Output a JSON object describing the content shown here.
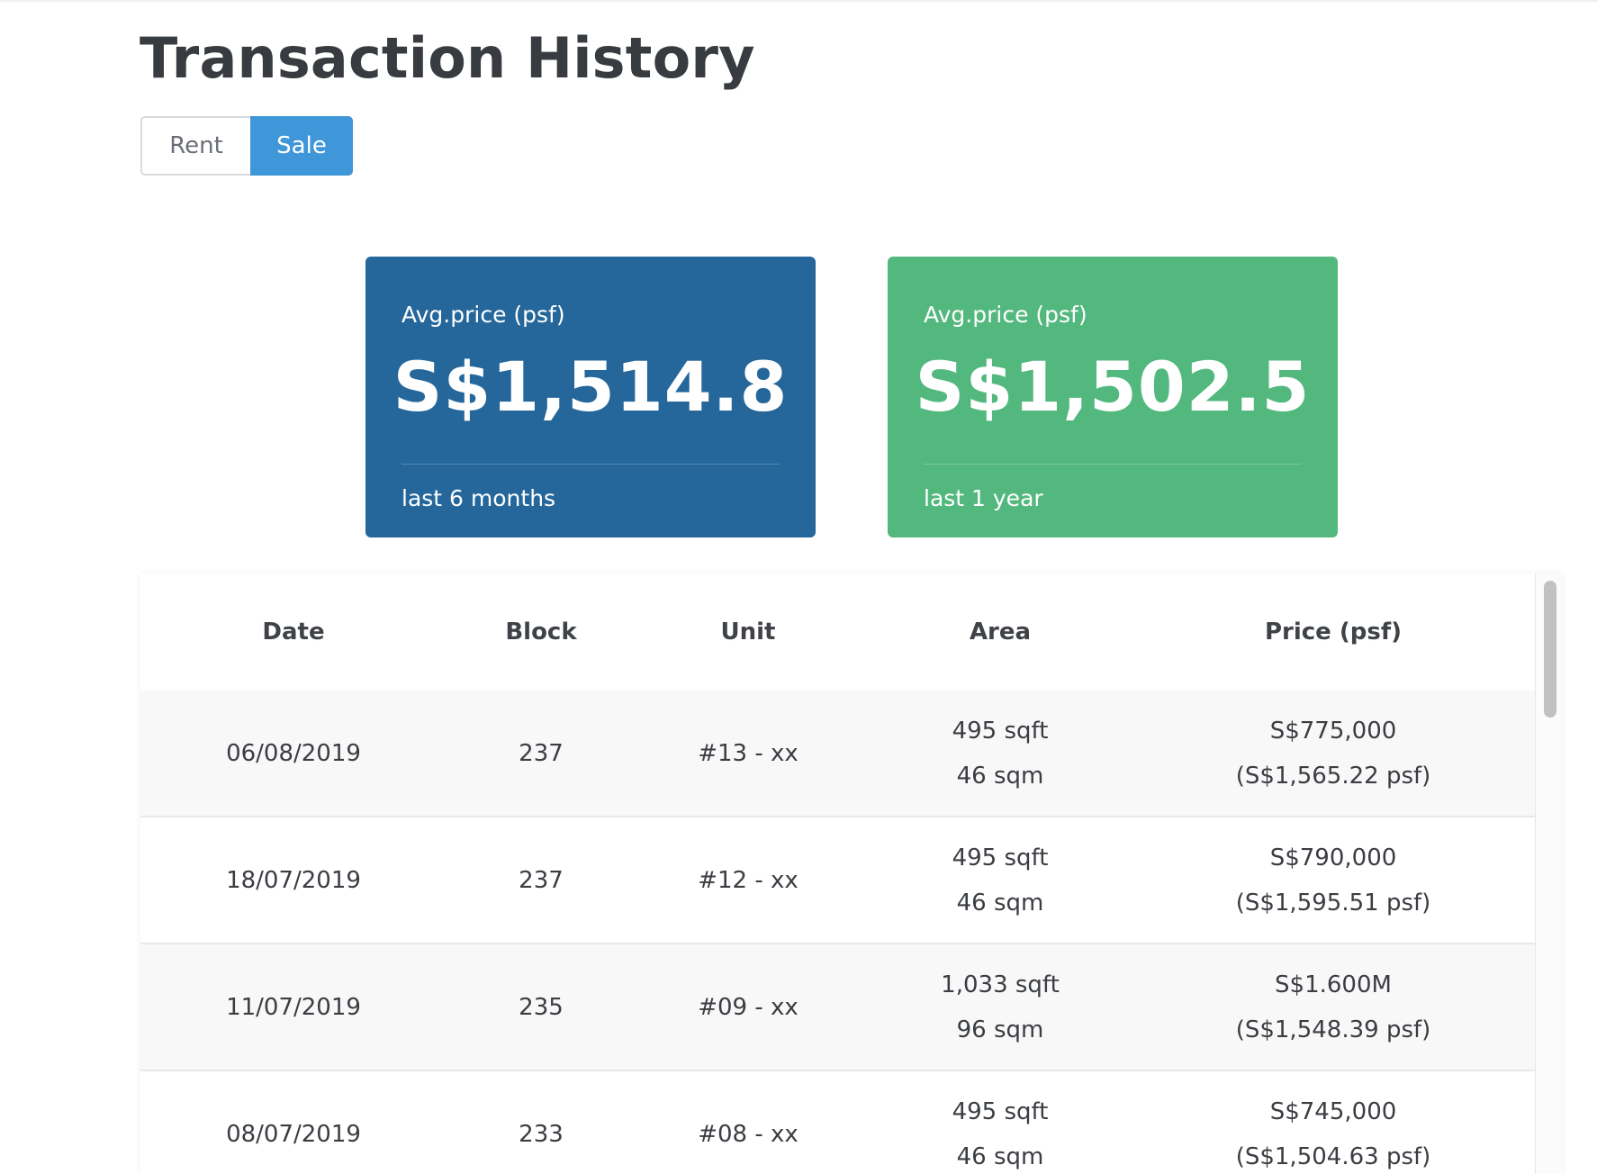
{
  "page": {
    "title": "Transaction History"
  },
  "toggle": {
    "rent_label": "Rent",
    "sale_label": "Sale",
    "selected": "Sale"
  },
  "cards": [
    {
      "label": "Avg.price (psf)",
      "value": "S$1,514.8",
      "period": "last 6 months",
      "color": "#25679b"
    },
    {
      "label": "Avg.price (psf)",
      "value": "S$1,502.5",
      "period": "last 1 year",
      "color": "#53b87e"
    }
  ],
  "table": {
    "headers": {
      "date": "Date",
      "block": "Block",
      "unit": "Unit",
      "area": "Area",
      "price": "Price (psf)"
    },
    "rows": [
      {
        "date": "06/08/2019",
        "block": "237",
        "unit": "#13 - xx",
        "area_sqft": "495 sqft",
        "area_sqm": "46 sqm",
        "price": "S$775,000",
        "psf": "(S$1,565.22 psf)"
      },
      {
        "date": "18/07/2019",
        "block": "237",
        "unit": "#12 - xx",
        "area_sqft": "495 sqft",
        "area_sqm": "46 sqm",
        "price": "S$790,000",
        "psf": "(S$1,595.51 psf)"
      },
      {
        "date": "11/07/2019",
        "block": "235",
        "unit": "#09 - xx",
        "area_sqft": "1,033 sqft",
        "area_sqm": "96 sqm",
        "price": "S$1.600M",
        "psf": "(S$1,548.39 psf)"
      },
      {
        "date": "08/07/2019",
        "block": "233",
        "unit": "#08 - xx",
        "area_sqft": "495 sqft",
        "area_sqm": "46 sqm",
        "price": "S$745,000",
        "psf": "(S$1,504.63 psf)"
      }
    ]
  },
  "colors": {
    "accent": "#3f96d8",
    "card_blue": "#25679b",
    "card_green": "#53b87e",
    "row_alt": "#f8f8f8"
  }
}
